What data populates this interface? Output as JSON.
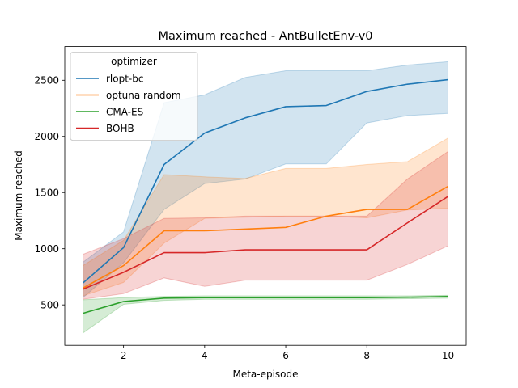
{
  "chart_data": {
    "type": "line",
    "title": "Maximum reached - AntBulletEnv-v0",
    "xlabel": "Meta-episode",
    "ylabel": "Maximum reached",
    "xlim": [
      0.55,
      10.45
    ],
    "ylim": [
      140,
      2800
    ],
    "xticks": [
      2,
      4,
      6,
      8,
      10
    ],
    "yticks": [
      500,
      1000,
      1500,
      2000,
      2500
    ],
    "grid": false,
    "legend": {
      "title": "optimizer",
      "placement": "upper-left"
    },
    "x": [
      1,
      2,
      3,
      4,
      5,
      6,
      7,
      8,
      9,
      10
    ],
    "series": [
      {
        "name": "rlopt-bc",
        "color": "#1f77b4",
        "values": [
          695,
          1010,
          1750,
          2030,
          2165,
          2265,
          2275,
          2400,
          2465,
          2505
        ],
        "ci_lower": [
          565,
          875,
          1350,
          1580,
          1620,
          1755,
          1755,
          2120,
          2185,
          2205
        ],
        "ci_upper": [
          880,
          1150,
          2300,
          2370,
          2525,
          2585,
          2585,
          2585,
          2635,
          2665
        ]
      },
      {
        "name": "optuna random",
        "color": "#ff7f0e",
        "values": [
          650,
          850,
          1160,
          1160,
          1175,
          1190,
          1290,
          1350,
          1350,
          1555
        ],
        "ci_lower": [
          580,
          700,
          1050,
          1270,
          1280,
          1290,
          1290,
          1275,
          1345,
          1360
        ],
        "ci_upper": [
          850,
          1075,
          1660,
          1640,
          1625,
          1715,
          1715,
          1750,
          1775,
          1985
        ]
      },
      {
        "name": "CMA-ES",
        "color": "#2ca02c",
        "values": [
          425,
          530,
          560,
          565,
          565,
          565,
          565,
          565,
          568,
          575
        ],
        "ci_lower": [
          250,
          505,
          540,
          550,
          550,
          550,
          550,
          550,
          555,
          560
        ],
        "ci_upper": [
          545,
          565,
          575,
          580,
          580,
          580,
          580,
          580,
          580,
          585
        ]
      },
      {
        "name": "BOHB",
        "color": "#d62728",
        "values": [
          640,
          790,
          965,
          965,
          990,
          990,
          990,
          990,
          1230,
          1465
        ],
        "ci_lower": [
          550,
          600,
          740,
          665,
          720,
          720,
          720,
          720,
          860,
          1025
        ],
        "ci_upper": [
          950,
          1090,
          1270,
          1275,
          1290,
          1290,
          1290,
          1290,
          1620,
          1865
        ]
      }
    ]
  }
}
